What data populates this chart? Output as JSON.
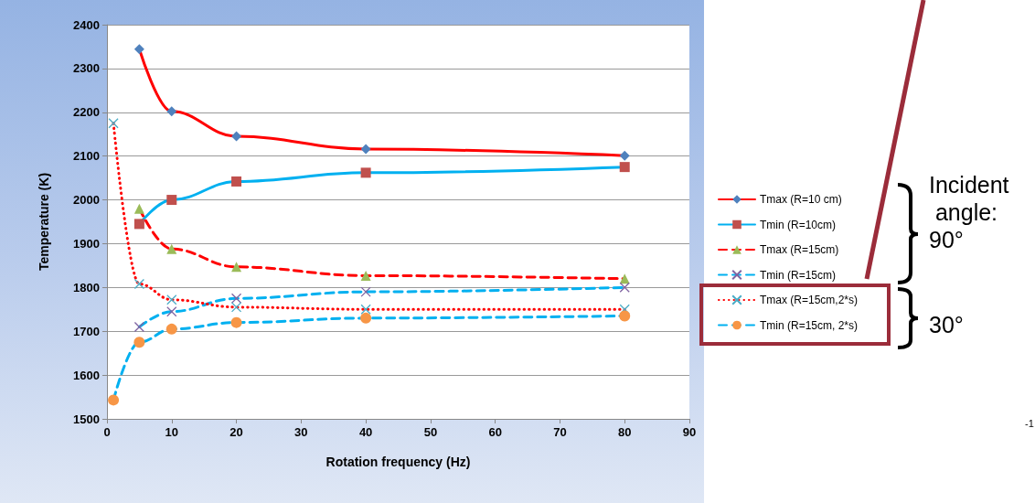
{
  "chart_data": {
    "type": "line",
    "xlabel": "Rotation frequency (Hz)",
    "ylabel": "Temperature (K)",
    "xlim": [
      0,
      90
    ],
    "xticks": [
      0,
      10,
      20,
      30,
      40,
      50,
      60,
      70,
      80,
      90
    ],
    "ylim": [
      1500,
      2400
    ],
    "yticks": [
      1500,
      1600,
      1700,
      1800,
      1900,
      2000,
      2100,
      2200,
      2300,
      2400
    ],
    "grid": "y",
    "legend": "right",
    "series": [
      {
        "name": "Tmax (R=10 cm)",
        "color": "#ff0000",
        "marker": "diamond",
        "line_style": "solid",
        "x": [
          5,
          10,
          20,
          40,
          80
        ],
        "values": [
          2344,
          2202,
          2145,
          2116,
          2101
        ]
      },
      {
        "name": "Tmin (R=10cm)",
        "color": "#00b0f0",
        "marker": "square",
        "line_style": "solid",
        "x": [
          5,
          10,
          20,
          40,
          80
        ],
        "values": [
          1945,
          2000,
          2042,
          2062,
          2075
        ]
      },
      {
        "name": "Tmax (R=15cm)",
        "color": "#ff0000",
        "marker": "triangle",
        "line_style": "dashed",
        "x": [
          5,
          10,
          20,
          40,
          80
        ],
        "values": [
          1980,
          1888,
          1847,
          1827,
          1820
        ]
      },
      {
        "name": "Tmin (R=15cm)",
        "color": "#00b0f0",
        "marker": "cross",
        "line_style": "dashed",
        "x": [
          5,
          10,
          20,
          40,
          80
        ],
        "values": [
          1710,
          1745,
          1775,
          1790,
          1800
        ]
      },
      {
        "name": "Tmax (R=15cm,2*s)",
        "color": "#ff0000",
        "marker": "cross",
        "line_style": "dotted",
        "x": [
          1,
          5,
          10,
          20,
          40,
          80
        ],
        "values": [
          2175,
          1808,
          1772,
          1755,
          1750,
          1750
        ]
      },
      {
        "name": "Tmin (R=15cm, 2*s)",
        "color": "#00b0f0",
        "marker": "circle",
        "line_style": "dashed",
        "x": [
          1,
          5,
          10,
          20,
          40,
          80
        ],
        "values": [
          1543,
          1675,
          1705,
          1720,
          1730,
          1735
        ]
      }
    ],
    "annotations": [
      "Incident angle: 90°",
      "30°",
      "-1"
    ]
  }
}
